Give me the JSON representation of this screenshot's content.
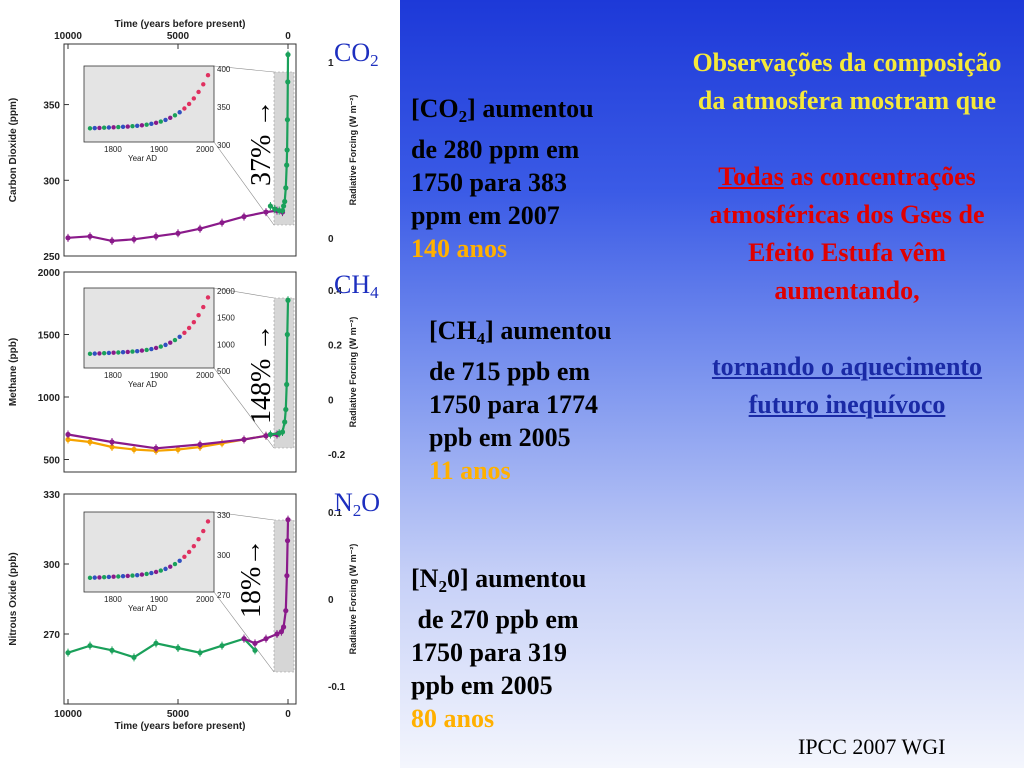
{
  "chart_data": [
    {
      "type": "scatter",
      "panel": "co2",
      "top_axis_label": "Time (years before present)",
      "bottom_axis_label": "",
      "x_ticks": [
        "10000",
        "5000",
        "0"
      ],
      "xlim": [
        10000,
        0
      ],
      "ylabel": "Carbon Dioxide (ppm)",
      "ylim": [
        250,
        390
      ],
      "y_ticks": [
        250,
        300,
        350
      ],
      "right_label": "Radiative Forcing (W m⁻²)",
      "right_ticks": [
        "1",
        "0"
      ],
      "inset": {
        "xlabel": "Year AD",
        "x_ticks": [
          "1800",
          "1900",
          "2000"
        ],
        "y_ticks": [
          "400",
          "350",
          "300"
        ]
      },
      "series": [
        {
          "color": "#8a1a8a",
          "points": [
            [
              10000,
              262
            ],
            [
              9000,
              263
            ],
            [
              8000,
              260
            ],
            [
              7000,
              261
            ],
            [
              6000,
              263
            ],
            [
              5000,
              265
            ],
            [
              4000,
              268
            ],
            [
              3000,
              272
            ],
            [
              2000,
              276
            ],
            [
              1000,
              279
            ],
            [
              500,
              280
            ],
            [
              250,
              279
            ]
          ]
        },
        {
          "color": "#1aa05a",
          "points": [
            [
              800,
              283
            ],
            [
              600,
              281
            ],
            [
              400,
              280
            ],
            [
              250,
              280
            ],
            [
              200,
              283
            ],
            [
              150,
              286
            ],
            [
              100,
              295
            ],
            [
              60,
              310
            ],
            [
              40,
              320
            ],
            [
              25,
              340
            ],
            [
              10,
              365
            ],
            [
              0,
              383
            ]
          ]
        }
      ]
    },
    {
      "type": "scatter",
      "panel": "ch4",
      "ylabel": "Methane (ppb)",
      "ylim": [
        400,
        2000
      ],
      "y_ticks": [
        500,
        1000,
        1500,
        2000
      ],
      "right_label": "Radiative Forcing (W m⁻²)",
      "right_ticks": [
        "0.4",
        "0.2",
        "0",
        "-0.2"
      ],
      "inset": {
        "xlabel": "Year AD",
        "x_ticks": [
          "1800",
          "1900",
          "2000"
        ],
        "y_ticks": [
          "2000",
          "1500",
          "1000",
          "500"
        ]
      },
      "series": [
        {
          "color": "#f5a300",
          "points": [
            [
              10000,
              660
            ],
            [
              9000,
              640
            ],
            [
              8000,
              600
            ],
            [
              7000,
              580
            ],
            [
              6000,
              570
            ],
            [
              5000,
              580
            ],
            [
              4000,
              600
            ],
            [
              3000,
              630
            ],
            [
              2000,
              660
            ],
            [
              1000,
              690
            ],
            [
              500,
              700
            ]
          ]
        },
        {
          "color": "#8a1a8a",
          "points": [
            [
              10000,
              700
            ],
            [
              8000,
              640
            ],
            [
              6000,
              590
            ],
            [
              4000,
              620
            ],
            [
              2000,
              660
            ],
            [
              1000,
              690
            ],
            [
              500,
              700
            ]
          ]
        },
        {
          "color": "#1aa05a",
          "points": [
            [
              800,
              700
            ],
            [
              400,
              710
            ],
            [
              250,
              720
            ],
            [
              150,
              800
            ],
            [
              100,
              900
            ],
            [
              60,
              1100
            ],
            [
              30,
              1500
            ],
            [
              0,
              1774
            ]
          ]
        }
      ]
    },
    {
      "type": "scatter",
      "panel": "n2o",
      "top_axis_label": "",
      "bottom_axis_label": "Time (years before present)",
      "x_ticks": [
        "10000",
        "5000",
        "0"
      ],
      "xlim": [
        10000,
        0
      ],
      "ylabel": "Nitrous Oxide (ppb)",
      "ylim": [
        240,
        330
      ],
      "y_ticks": [
        270,
        300,
        330
      ],
      "right_label": "Radiative Forcing (W m⁻²)",
      "right_ticks": [
        "0.1",
        "0",
        "-0.1"
      ],
      "inset": {
        "xlabel": "Year AD",
        "x_ticks": [
          "1800",
          "1900",
          "2000"
        ],
        "y_ticks": [
          "330",
          "300",
          "270"
        ]
      },
      "series": [
        {
          "color": "#1aa05a",
          "points": [
            [
              10000,
              262
            ],
            [
              9000,
              265
            ],
            [
              8000,
              263
            ],
            [
              7000,
              260
            ],
            [
              6000,
              266
            ],
            [
              5000,
              264
            ],
            [
              4000,
              262
            ],
            [
              3000,
              265
            ],
            [
              2000,
              268
            ],
            [
              1500,
              263
            ]
          ]
        },
        {
          "color": "#8a1a8a",
          "points": [
            [
              2000,
              268
            ],
            [
              1500,
              266
            ],
            [
              1000,
              268
            ],
            [
              500,
              270
            ],
            [
              300,
              271
            ],
            [
              200,
              273
            ],
            [
              100,
              280
            ],
            [
              50,
              295
            ],
            [
              20,
              310
            ],
            [
              0,
              319
            ]
          ]
        }
      ]
    }
  ],
  "labels": {
    "co2": {
      "main": "CO",
      "sub": "2"
    },
    "ch4": {
      "main": "CH",
      "sub": "4"
    },
    "n2o": {
      "main": "N",
      "sub": "2",
      "tail": "O"
    }
  },
  "percent": {
    "co2": "37% →",
    "ch4": "148% →",
    "n2o": "18%→"
  },
  "stats": {
    "co2": {
      "open": "[CO",
      "sub": "2",
      "rest": "] aumentou",
      "lines": [
        "de 280 ppm em",
        "1750 para 383",
        "ppm em 2007"
      ],
      "years": "140 anos"
    },
    "ch4": {
      "open": "[CH",
      "sub": "4",
      "rest": "] aumentou",
      "lines": [
        "de 715 ppb em",
        "1750 para 1774",
        "ppb em 2005"
      ],
      "years": "11 anos"
    },
    "n2o": {
      "open": "[N",
      "sub": "2",
      "rest": "0] aumentou",
      "lines": [
        " de 270 ppb em",
        "1750 para 319",
        "ppb em 2005"
      ],
      "years": "80 anos"
    }
  },
  "right": {
    "obs": "Observações da composição da atmosfera mostram que",
    "todas": "Todas",
    "todas_rest": " as concentrações atmosféricas dos Gses de Efeito Estufa vêm aumentando,",
    "link": "tornando o aquecimento futuro inequívoco"
  },
  "citation": "IPCC 2007 WGI"
}
